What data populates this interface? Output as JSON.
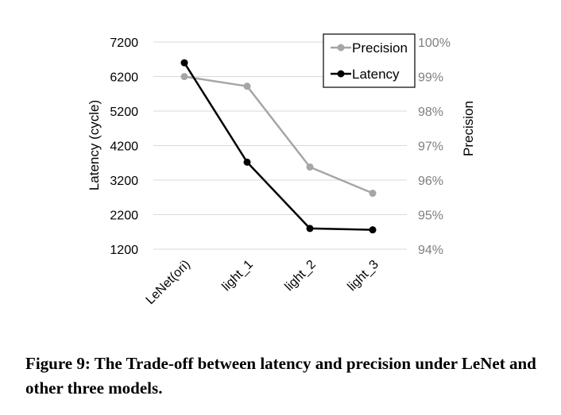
{
  "chart_data": {
    "type": "line",
    "categories": [
      "LeNet(ori)",
      "light_1",
      "light_2",
      "light_3"
    ],
    "y_left": {
      "label": "Latency (cycle)",
      "ticks": [
        "7200",
        "6200",
        "5200",
        "4200",
        "3200",
        "2200",
        "1200"
      ],
      "range": [
        1200,
        7200
      ]
    },
    "y_right": {
      "label": "Precision",
      "ticks": [
        "100%",
        "99%",
        "98%",
        "97%",
        "96%",
        "95%",
        "94%"
      ],
      "range": [
        94,
        100
      ]
    },
    "series": [
      {
        "name": "Precision",
        "axis": "right",
        "color": "#a6a6a6",
        "values": [
          99.0,
          98.72,
          96.38,
          95.62
        ]
      },
      {
        "name": "Latency",
        "axis": "left",
        "color": "#000000",
        "values": [
          6600,
          3720,
          1800,
          1760
        ]
      }
    ],
    "legend_position": "top-right",
    "grid": true
  },
  "caption": "Figure 9: The Trade-off between latency and precision under LeNet and other three models."
}
